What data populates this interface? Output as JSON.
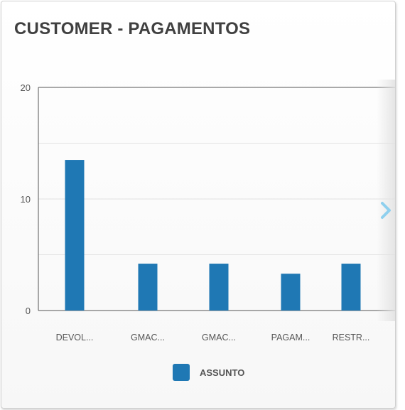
{
  "panel": {
    "title": "CUSTOMER - PAGAMENTOS"
  },
  "navigation": {
    "next_icon": "chevron-right-icon",
    "accent": "#8fd0ee"
  },
  "legend": {
    "label": "ASSUNTO",
    "color": "#1f78b4"
  },
  "chart_data": {
    "type": "bar",
    "categories": [
      "DEVOL...",
      "GMAC...",
      "GMAC...",
      "PAGAM...",
      "RESTR..."
    ],
    "series": [
      {
        "name": "ASSUNTO",
        "values": [
          13.5,
          4.2,
          4.2,
          3.3,
          4.2
        ],
        "color": "#1f78b4"
      }
    ],
    "yticks": [
      0,
      10,
      20
    ],
    "ylim": [
      0,
      20
    ],
    "grid": true,
    "legend_position": "bottom"
  }
}
